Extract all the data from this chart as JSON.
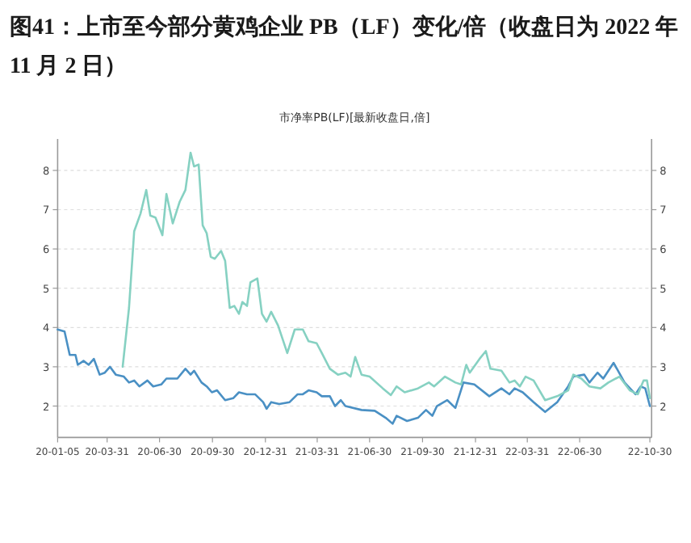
{
  "chart_data": {
    "type": "line",
    "title": "图41：上市至今部分黄鸡企业 PB（LF）变化/倍（收盘日为 2022 年 11 月 2 日）",
    "subtitle": "市净率PB(LF)[最新收盘日,倍]",
    "xlim": [
      "2020-01-05",
      "2022-11-02"
    ],
    "xticks": [
      {
        "value": "2020-01-05",
        "label": "20-01-05"
      },
      {
        "value": "2020-03-31",
        "label": "20-03-31"
      },
      {
        "value": "2020-06-30",
        "label": "20-06-30"
      },
      {
        "value": "2020-09-30",
        "label": "20-09-30"
      },
      {
        "value": "2020-12-31",
        "label": "20-12-31"
      },
      {
        "value": "2021-03-31",
        "label": "21-03-31"
      },
      {
        "value": "2021-06-30",
        "label": "21-06-30"
      },
      {
        "value": "2021-09-30",
        "label": "21-09-30"
      },
      {
        "value": "2021-12-31",
        "label": "21-12-31"
      },
      {
        "value": "2022-03-31",
        "label": "22-03-31"
      },
      {
        "value": "2022-06-30",
        "label": "22-06-30"
      },
      {
        "value": "2022-10-30",
        "label": "22-10-30"
      }
    ],
    "ylim": [
      1.2,
      8.8
    ],
    "yticks": [
      2,
      3,
      4,
      5,
      6,
      7,
      8
    ],
    "y2lim": [
      1.2,
      8.8
    ],
    "y2ticks": [
      2,
      3,
      4,
      5,
      6,
      7,
      8
    ],
    "grid": "y",
    "series": [
      {
        "color": "#4a90c4",
        "x": [
          "2020-01-05",
          "2020-01-17",
          "2020-01-26",
          "2020-02-05",
          "2020-02-09",
          "2020-02-19",
          "2020-02-28",
          "2020-03-08",
          "2020-03-18",
          "2020-03-27",
          "2020-04-05",
          "2020-04-15",
          "2020-04-29",
          "2020-05-08",
          "2020-05-17",
          "2020-05-26",
          "2020-06-09",
          "2020-06-19",
          "2020-07-03",
          "2020-07-12",
          "2020-07-31",
          "2020-08-14",
          "2020-08-23",
          "2020-08-29",
          "2020-09-11",
          "2020-09-20",
          "2020-09-29",
          "2020-10-08",
          "2020-10-22",
          "2020-11-05",
          "2020-11-15",
          "2020-11-29",
          "2020-12-13",
          "2020-12-27",
          "2021-01-02",
          "2021-01-10",
          "2021-01-24",
          "2021-02-11",
          "2021-02-25",
          "2021-03-06",
          "2021-03-16",
          "2021-03-30",
          "2021-04-08",
          "2021-04-22",
          "2021-05-01",
          "2021-05-11",
          "2021-05-19",
          "2021-06-16",
          "2021-07-09",
          "2021-07-28",
          "2021-08-09",
          "2021-08-16",
          "2021-09-03",
          "2021-09-22",
          "2021-10-06",
          "2021-10-17",
          "2021-10-25",
          "2021-11-12",
          "2021-11-26",
          "2021-12-10",
          "2021-12-29",
          "2022-01-24",
          "2022-02-14",
          "2022-02-28",
          "2022-03-09",
          "2022-03-23",
          "2022-04-11",
          "2022-05-01",
          "2022-05-22",
          "2022-06-10",
          "2022-06-19",
          "2022-07-08",
          "2022-07-17",
          "2022-07-31",
          "2022-08-10",
          "2022-08-28",
          "2022-09-16",
          "2022-10-05",
          "2022-10-14",
          "2022-10-22",
          "2022-10-30"
        ],
        "values": [
          3.95,
          3.9,
          3.3,
          3.3,
          3.05,
          3.15,
          3.05,
          3.2,
          2.8,
          2.85,
          3.0,
          2.8,
          2.75,
          2.6,
          2.65,
          2.5,
          2.65,
          2.5,
          2.55,
          2.7,
          2.7,
          2.95,
          2.8,
          2.9,
          2.6,
          2.5,
          2.35,
          2.4,
          2.15,
          2.2,
          2.35,
          2.3,
          2.3,
          2.1,
          1.93,
          2.1,
          2.05,
          2.1,
          2.3,
          2.3,
          2.4,
          2.35,
          2.25,
          2.25,
          2.0,
          2.15,
          2.0,
          1.9,
          1.88,
          1.7,
          1.55,
          1.75,
          1.62,
          1.7,
          1.9,
          1.75,
          2.0,
          2.15,
          1.95,
          2.6,
          2.55,
          2.25,
          2.45,
          2.3,
          2.45,
          2.35,
          2.1,
          1.85,
          2.1,
          2.5,
          2.75,
          2.8,
          2.6,
          2.85,
          2.7,
          3.1,
          2.6,
          2.3,
          2.5,
          2.45,
          2.0
        ]
      },
      {
        "color": "#86d1c2",
        "x": [
          "2020-04-27",
          "2020-05-08",
          "2020-05-17",
          "2020-05-28",
          "2020-06-07",
          "2020-06-14",
          "2020-06-23",
          "2020-07-05",
          "2020-07-12",
          "2020-07-23",
          "2020-08-04",
          "2020-08-14",
          "2020-08-23",
          "2020-08-29",
          "2020-09-06",
          "2020-09-13",
          "2020-09-20",
          "2020-09-27",
          "2020-10-04",
          "2020-10-15",
          "2020-10-22",
          "2020-10-30",
          "2020-11-07",
          "2020-11-15",
          "2020-11-21",
          "2020-11-29",
          "2020-12-05",
          "2020-12-17",
          "2020-12-25",
          "2021-01-02",
          "2021-01-10",
          "2021-01-22",
          "2021-02-07",
          "2021-02-20",
          "2021-03-06",
          "2021-03-16",
          "2021-03-30",
          "2021-04-08",
          "2021-04-22",
          "2021-05-06",
          "2021-05-19",
          "2021-05-28",
          "2021-06-05",
          "2021-06-16",
          "2021-06-30",
          "2021-07-23",
          "2021-08-06",
          "2021-08-16",
          "2021-08-30",
          "2021-09-22",
          "2021-10-11",
          "2021-10-20",
          "2021-11-08",
          "2021-11-26",
          "2021-12-06",
          "2021-12-15",
          "2021-12-21",
          "2022-01-07",
          "2022-01-18",
          "2022-01-26",
          "2022-02-14",
          "2022-02-28",
          "2022-03-09",
          "2022-03-18",
          "2022-03-28",
          "2022-04-11",
          "2022-05-01",
          "2022-05-22",
          "2022-06-10",
          "2022-06-19",
          "2022-07-03",
          "2022-07-17",
          "2022-08-05",
          "2022-08-19",
          "2022-09-07",
          "2022-09-25",
          "2022-10-09",
          "2022-10-19",
          "2022-10-25",
          "2022-10-30"
        ],
        "values": [
          3.0,
          4.5,
          6.45,
          6.9,
          7.5,
          6.85,
          6.8,
          6.35,
          7.4,
          6.65,
          7.2,
          7.5,
          8.45,
          8.1,
          8.15,
          6.6,
          6.4,
          5.8,
          5.75,
          5.95,
          5.7,
          4.5,
          4.55,
          4.35,
          4.65,
          4.55,
          5.15,
          5.25,
          4.35,
          4.15,
          4.4,
          4.05,
          3.35,
          3.95,
          3.95,
          3.65,
          3.6,
          3.35,
          2.95,
          2.8,
          2.85,
          2.75,
          3.25,
          2.8,
          2.75,
          2.45,
          2.28,
          2.5,
          2.35,
          2.45,
          2.6,
          2.5,
          2.75,
          2.6,
          2.55,
          3.05,
          2.85,
          3.2,
          3.4,
          2.95,
          2.9,
          2.6,
          2.65,
          2.5,
          2.75,
          2.65,
          2.15,
          2.25,
          2.4,
          2.8,
          2.7,
          2.5,
          2.45,
          2.6,
          2.75,
          2.4,
          2.3,
          2.65,
          2.65,
          2.2
        ]
      }
    ]
  }
}
